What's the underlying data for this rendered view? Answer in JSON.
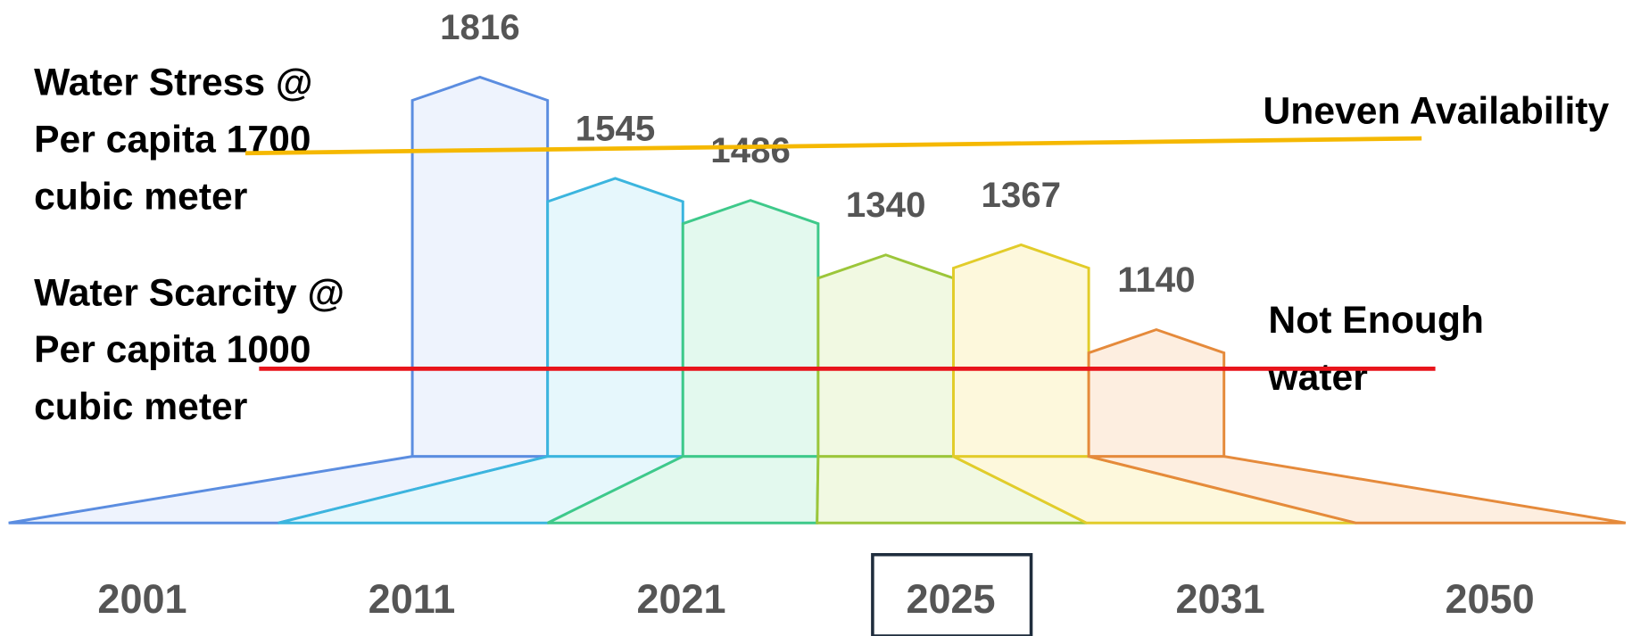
{
  "chart_data": {
    "type": "house-bar",
    "categories": [
      "2001",
      "2011",
      "2021",
      "2025",
      "2031",
      "2050"
    ],
    "values": [
      1816,
      1545,
      1486,
      1340,
      1367,
      1140
    ],
    "colors": [
      "#5b8de0",
      "#3bb5de",
      "#3ec98a",
      "#9cc63a",
      "#e2cc2a",
      "#e58a3b"
    ],
    "fills": [
      "#eef3fd",
      "#e6f7fc",
      "#e3f9ee",
      "#f1f9e2",
      "#fdf8dc",
      "#fdeee0"
    ],
    "highlight": "2025",
    "annotations": {
      "stress": [
        "Water Stress @",
        "Per capita 1700",
        "cubic meter"
      ],
      "scarcity": [
        "Water Scarcity @",
        "Per capita 1000",
        "cubic meter"
      ],
      "uneven": "Uneven Availability",
      "not_enough": [
        "Not Enough",
        "water"
      ]
    }
  }
}
